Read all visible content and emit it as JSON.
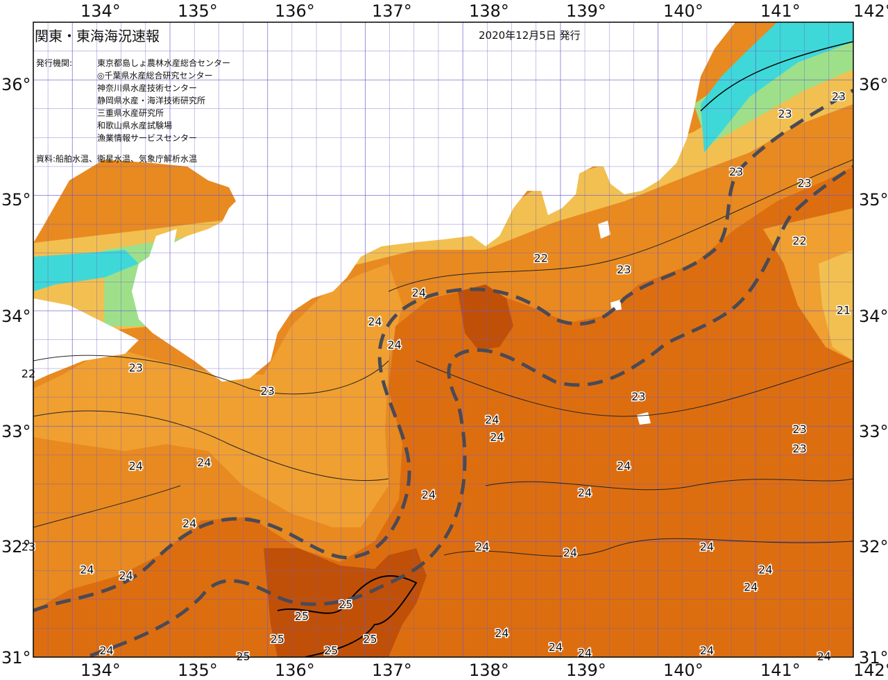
{
  "header": {
    "title": "関東・東海海況速報",
    "date": "2020年12月5日 発行",
    "publisher_label": "発行機関:",
    "publishers": [
      "東京都島しょ農林水産総合センター",
      "◎千葉県水産総合研究センター",
      "神奈川県水産技術センター",
      "静岡県水産・海洋技術研究所",
      "三重県水産研究所",
      "和歌山県水産試験場",
      "漁業情報サービスセンター"
    ],
    "source": "資料:船舶水温、衛星水温、気象庁解析水温"
  },
  "axes": {
    "lon_labels": [
      "134°",
      "135°",
      "136°",
      "137°",
      "138°",
      "139°",
      "140°",
      "141°",
      "142°"
    ],
    "lat_labels": [
      "36°",
      "35°",
      "34°",
      "33°",
      "32°",
      "31°"
    ]
  },
  "colors": {
    "sea_22": "#f0a030",
    "sea_23": "#e88a20",
    "sea_24": "#dd6e10",
    "sea_25": "#c05008",
    "coast_warm": "#f2c050",
    "coast_cool": "#9ee08a",
    "coast_cold": "#3fd8d8",
    "land": "#ffffff",
    "grid": "#6a5acd",
    "front": "#4a4a55"
  },
  "isotherm_labels": [
    {
      "text": "23",
      "lon": 141.85,
      "lat": 35.85
    },
    {
      "text": "23",
      "lon": 141.3,
      "lat": 35.7
    },
    {
      "text": "23",
      "lon": 140.8,
      "lat": 35.2
    },
    {
      "text": "23",
      "lon": 141.5,
      "lat": 35.1
    },
    {
      "text": "22",
      "lon": 141.45,
      "lat": 34.6
    },
    {
      "text": "22",
      "lon": 138.8,
      "lat": 34.45
    },
    {
      "text": "23",
      "lon": 139.65,
      "lat": 34.35
    },
    {
      "text": "24",
      "lon": 137.55,
      "lat": 34.15
    },
    {
      "text": "21",
      "lon": 141.9,
      "lat": 34.0
    },
    {
      "text": "24",
      "lon": 137.1,
      "lat": 33.9
    },
    {
      "text": "24",
      "lon": 137.3,
      "lat": 33.7
    },
    {
      "text": "22",
      "lon": 133.55,
      "lat": 33.45
    },
    {
      "text": "23",
      "lon": 134.65,
      "lat": 33.5
    },
    {
      "text": "23",
      "lon": 136.0,
      "lat": 33.3
    },
    {
      "text": "23",
      "lon": 139.8,
      "lat": 33.25
    },
    {
      "text": "24",
      "lon": 138.3,
      "lat": 33.05
    },
    {
      "text": "24",
      "lon": 138.35,
      "lat": 32.9
    },
    {
      "text": "23",
      "lon": 141.45,
      "lat": 32.97
    },
    {
      "text": "23",
      "lon": 141.45,
      "lat": 32.8
    },
    {
      "text": "24",
      "lon": 134.65,
      "lat": 32.65
    },
    {
      "text": "24",
      "lon": 135.35,
      "lat": 32.68
    },
    {
      "text": "24",
      "lon": 139.65,
      "lat": 32.65
    },
    {
      "text": "24",
      "lon": 137.65,
      "lat": 32.4
    },
    {
      "text": "24",
      "lon": 139.25,
      "lat": 32.42
    },
    {
      "text": "24",
      "lon": 135.2,
      "lat": 32.15
    },
    {
      "text": "23",
      "lon": 133.55,
      "lat": 31.95
    },
    {
      "text": "24",
      "lon": 138.2,
      "lat": 31.95
    },
    {
      "text": "24",
      "lon": 139.1,
      "lat": 31.9
    },
    {
      "text": "24",
      "lon": 140.5,
      "lat": 31.95
    },
    {
      "text": "24",
      "lon": 134.15,
      "lat": 31.75
    },
    {
      "text": "24",
      "lon": 134.55,
      "lat": 31.7
    },
    {
      "text": "24",
      "lon": 141.1,
      "lat": 31.75
    },
    {
      "text": "24",
      "lon": 140.95,
      "lat": 31.6
    },
    {
      "text": "25",
      "lon": 136.8,
      "lat": 31.45
    },
    {
      "text": "25",
      "lon": 136.35,
      "lat": 31.35
    },
    {
      "text": "25",
      "lon": 136.1,
      "lat": 31.15
    },
    {
      "text": "25",
      "lon": 137.05,
      "lat": 31.15
    },
    {
      "text": "24",
      "lon": 138.4,
      "lat": 31.2
    },
    {
      "text": "24",
      "lon": 138.95,
      "lat": 31.08
    },
    {
      "text": "24",
      "lon": 139.25,
      "lat": 31.03
    },
    {
      "text": "24",
      "lon": 140.5,
      "lat": 31.05
    },
    {
      "text": "24",
      "lon": 134.35,
      "lat": 31.05
    },
    {
      "text": "25",
      "lon": 135.75,
      "lat": 31.0
    },
    {
      "text": "25",
      "lon": 136.65,
      "lat": 31.05
    },
    {
      "text": "24",
      "lon": 141.7,
      "lat": 31.0
    }
  ]
}
